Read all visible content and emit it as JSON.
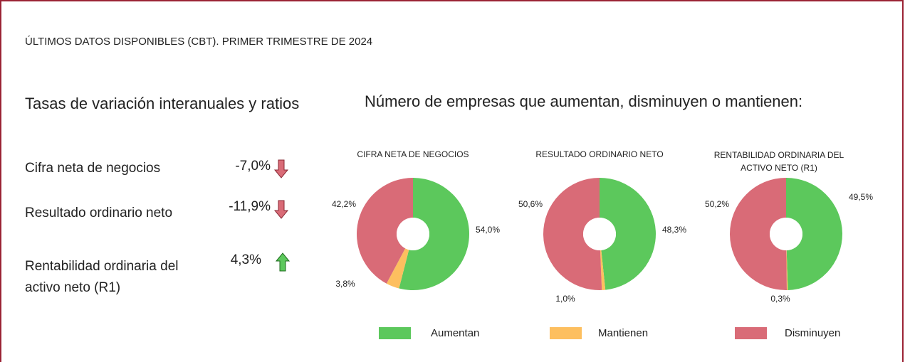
{
  "header": "ÚLTIMOS DATOS DISPONIBLES (CBT). PRIMER TRIMESTRE DE 2024",
  "left_title": "Tasas de variación interanuales y ratios",
  "indicators": [
    {
      "label": "Cifra neta de negocios",
      "value": -7.0,
      "value_label": "-7,0%"
    },
    {
      "label": "Resultado ordinario neto",
      "value": -11.9,
      "value_label": "-11,9%"
    },
    {
      "label": "Rentabilidad ordinaria del activo neto (R1)",
      "value": 4.3,
      "value_label": "4,3%"
    }
  ],
  "right_title": "Número de empresas que aumentan, disminuyen o mantienen:",
  "chart_data": [
    {
      "type": "pie",
      "title": "CIFRA NETA DE NEGOCIOS",
      "categories": [
        "Aumentan",
        "Mantienen",
        "Disminuyen"
      ],
      "values": [
        54.0,
        3.8,
        42.2
      ],
      "value_labels": [
        "54,0%",
        "3,8%",
        "42,2%"
      ],
      "colors": [
        "#5cc85c",
        "#fdbf5f",
        "#d96b77"
      ]
    },
    {
      "type": "pie",
      "title": "RESULTADO ORDINARIO NETO",
      "categories": [
        "Aumentan",
        "Mantienen",
        "Disminuyen"
      ],
      "values": [
        48.3,
        1.0,
        50.6
      ],
      "value_labels": [
        "48,3%",
        "1,0%",
        "50,6%"
      ],
      "colors": [
        "#5cc85c",
        "#fdbf5f",
        "#d96b77"
      ]
    },
    {
      "type": "pie",
      "title": "RENTABILIDAD ORDINARIA DEL ACTIVO NETO (R1)",
      "categories": [
        "Aumentan",
        "Mantienen",
        "Disminuyen"
      ],
      "values": [
        49.5,
        0.3,
        50.2
      ],
      "value_labels": [
        "49,5%",
        "0,3%",
        "50,2%"
      ],
      "colors": [
        "#5cc85c",
        "#fdbf5f",
        "#d96b77"
      ]
    }
  ]
}
